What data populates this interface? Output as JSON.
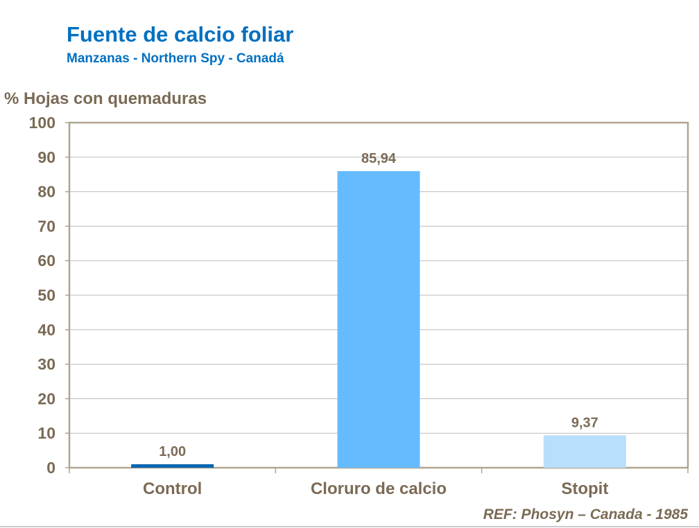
{
  "title": "Fuente de calcio foliar",
  "subtitle": "Manzanas - Northern Spy - Canadá",
  "reference": "REF: Phosyn – Canada - 1985",
  "chart_data": {
    "type": "bar",
    "ylabel": "% Hojas con quemaduras",
    "categories": [
      "Control",
      "Cloruro de calcio",
      "Stopit"
    ],
    "values": [
      1.0,
      85.94,
      9.37
    ],
    "data_labels": [
      "1,00",
      "85,94",
      "9,37"
    ],
    "colors": [
      "#0066b3",
      "#66bbff",
      "#b8dffc"
    ],
    "ylim": [
      0,
      100
    ],
    "yticks": [
      0,
      10,
      20,
      30,
      40,
      50,
      60,
      70,
      80,
      90,
      100
    ],
    "grid": true
  }
}
